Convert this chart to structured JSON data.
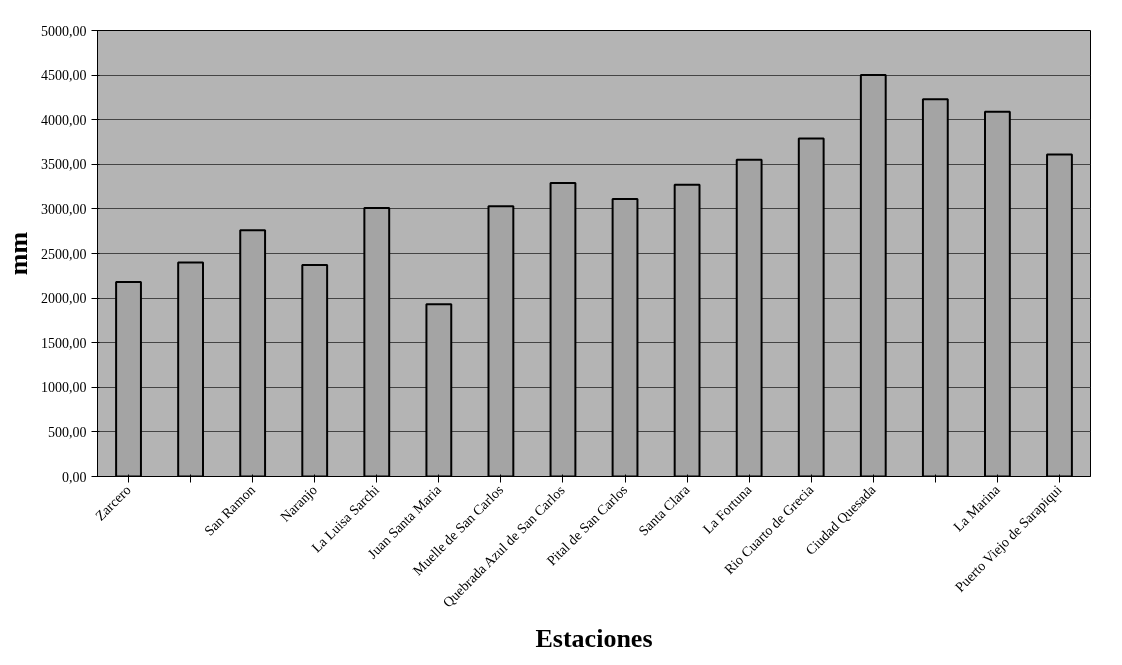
{
  "chart_data": {
    "type": "bar",
    "xlabel": "Estaciones",
    "ylabel": "mm",
    "categories": [
      "Zarcero",
      null,
      "San Ramon",
      "Naranjo",
      "La Luisa Sarchi",
      "Juan Santa Maria",
      "Muelle de San Carlos",
      "Quebrada Azul de San Carlos",
      "Pital de San Carlos",
      "Santa Clara",
      "La Fortuna",
      "Rio Cuarto de Grecia",
      "Ciudad Quesada",
      null,
      "La Marina",
      "Puerto Viejo de Sarapiqui"
    ],
    "values": [
      2180,
      2400,
      2760,
      2370,
      3010,
      1930,
      3030,
      3290,
      3110,
      3270,
      3550,
      3790,
      4500,
      4230,
      4090,
      3610
    ],
    "color": "#a4a4a4",
    "ylim": [
      0,
      5000
    ],
    "yticks": [
      {
        "value": 0,
        "label": "0,00"
      },
      {
        "value": 500,
        "label": "500,00"
      },
      {
        "value": 1000,
        "label": "1000,00"
      },
      {
        "value": 1500,
        "label": "1500,00"
      },
      {
        "value": 2000,
        "label": "2000,00"
      },
      {
        "value": 2500,
        "label": "2500,00"
      },
      {
        "value": 3000,
        "label": "3000,00"
      },
      {
        "value": 3500,
        "label": "3500,00"
      },
      {
        "value": 4000,
        "label": "4000,00"
      },
      {
        "value": 4500,
        "label": "4500,00"
      },
      {
        "value": 5000,
        "label": "5000,00"
      }
    ],
    "grid": "y"
  }
}
